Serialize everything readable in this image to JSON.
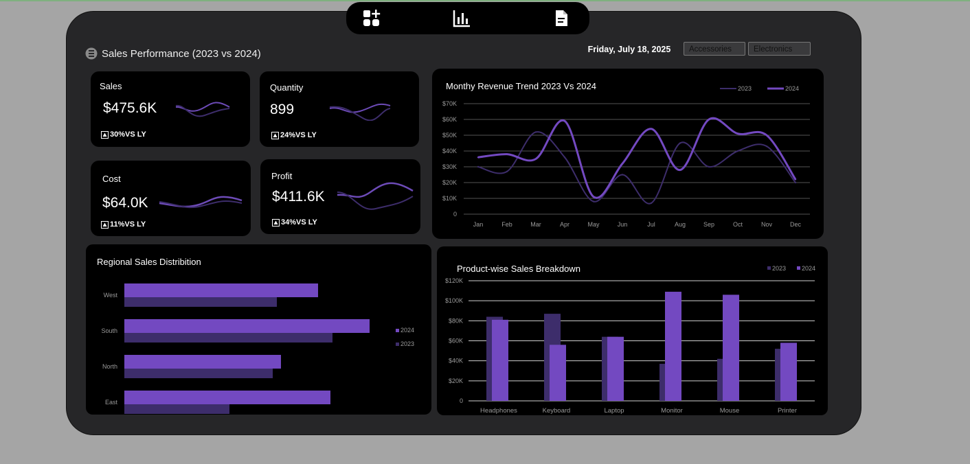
{
  "toolbar": {
    "icons": [
      "add-widget-icon",
      "bar-chart-icon",
      "document-icon"
    ]
  },
  "header": {
    "title": "Sales Performance (2023 vs 2024)",
    "date": "Friday, July 18, 2025"
  },
  "slicers": [
    "Accessories",
    "Electronics"
  ],
  "kpis": {
    "sales": {
      "label": "Sales",
      "value": "$475.6K",
      "delta": "30%VS LY"
    },
    "quantity": {
      "label": "Quantity",
      "value": "899",
      "delta": "24%VS LY"
    },
    "cost": {
      "label": "Cost",
      "value": "$64.0K",
      "delta": "11%VS LY"
    },
    "profit": {
      "label": "Profit",
      "value": "$411.6K",
      "delta": "34%VS LY"
    }
  },
  "colors": {
    "y2023": "#3d2d6b",
    "y2024": "#7349c1",
    "grid": "#555555",
    "tick": "#9a9a9a"
  },
  "chart_data": [
    {
      "type": "line",
      "title": "Monthy Revenue Trend 2023 Vs 2024",
      "categories": [
        "Jan",
        "Feb",
        "Mar",
        "Apr",
        "May",
        "Jun",
        "Jul",
        "Aug",
        "Sep",
        "Oct",
        "Nov",
        "Dec"
      ],
      "y_ticks": [
        "0",
        "$10K",
        "$20K",
        "$30K",
        "$40K",
        "$50K",
        "$60K",
        "$70K"
      ],
      "ylim": [
        0,
        70
      ],
      "series": [
        {
          "name": "2023",
          "values": [
            30,
            27,
            52,
            36,
            8,
            25,
            7,
            45,
            30,
            40,
            43,
            20
          ]
        },
        {
          "name": "2024",
          "values": [
            36,
            38,
            35,
            59,
            11,
            32,
            54,
            28,
            60,
            51,
            50,
            22
          ]
        }
      ],
      "legend": "top-right"
    },
    {
      "type": "bar",
      "orientation": "horizontal",
      "title": "Regional Sales Distribition",
      "categories": [
        "West",
        "South",
        "North",
        "East"
      ],
      "series": [
        {
          "name": "2024",
          "values": [
            94,
            119,
            76,
            100
          ]
        },
        {
          "name": "2023",
          "values": [
            74,
            101,
            72,
            51
          ]
        }
      ],
      "legend": "right"
    },
    {
      "type": "bar",
      "title": "Product-wise Sales Breakdown",
      "categories": [
        "Headphones",
        "Keyboard",
        "Laptop",
        "Monitor",
        "Mouse",
        "Printer"
      ],
      "y_ticks": [
        "0",
        "$20K",
        "$40K",
        "$60K",
        "$80K",
        "$100K",
        "$120K"
      ],
      "ylim": [
        0,
        120
      ],
      "series": [
        {
          "name": "2023",
          "values": [
            84,
            87,
            64,
            37,
            42,
            52
          ]
        },
        {
          "name": "2024",
          "values": [
            81,
            56,
            64,
            109,
            106,
            58
          ]
        }
      ],
      "legend": "top-right"
    }
  ]
}
